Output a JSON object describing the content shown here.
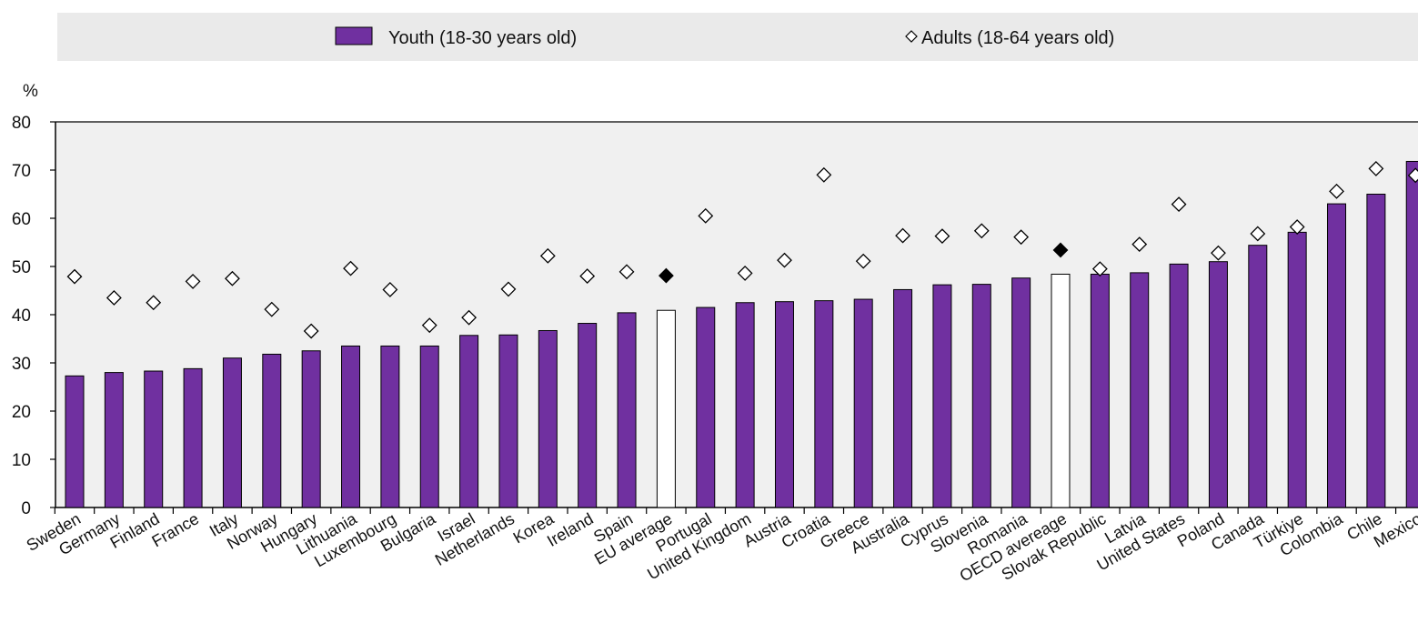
{
  "chart_data": {
    "type": "bar",
    "unit": "%",
    "ylim": [
      0,
      80
    ],
    "yticks": [
      0,
      10,
      20,
      30,
      40,
      50,
      60,
      70,
      80
    ],
    "grid": false,
    "legend_position": "top",
    "categories": [
      "Sweden",
      "Germany",
      "Finland",
      "France",
      "Italy",
      "Norway",
      "Hungary",
      "Lithuania",
      "Luxembourg",
      "Bulgaria",
      "Israel",
      "Netherlands",
      "Korea",
      "Ireland",
      "Spain",
      "EU average",
      "Portugal",
      "United Kingdom",
      "Austria",
      "Croatia",
      "Greece",
      "Australia",
      "Cyprus",
      "Slovenia",
      "Romania",
      "OECD avereage",
      "Slovak Republic",
      "Latvia",
      "United States",
      "Poland",
      "Canada",
      "Türkiye",
      "Colombia",
      "Chile",
      "Mexico"
    ],
    "highlight_categories": [
      "EU average",
      "OECD avereage"
    ],
    "series": [
      {
        "name": "Youth (18-30 years old)",
        "marker": "bar",
        "values": [
          27.3,
          28.0,
          28.3,
          28.8,
          31.0,
          31.8,
          32.5,
          33.5,
          33.5,
          33.5,
          35.7,
          35.8,
          36.7,
          38.2,
          40.4,
          40.9,
          41.5,
          42.5,
          42.7,
          42.9,
          43.2,
          45.2,
          46.2,
          46.3,
          47.6,
          48.4,
          48.4,
          48.7,
          50.5,
          51.0,
          54.4,
          57.1,
          63.0,
          65.0,
          71.8
        ]
      },
      {
        "name": "Adults (18-64 years old)",
        "marker": "diamond",
        "values": [
          47.9,
          43.5,
          42.5,
          46.9,
          47.5,
          41.1,
          36.6,
          49.6,
          45.2,
          37.8,
          39.4,
          45.3,
          52.2,
          48.0,
          48.9,
          48.1,
          60.5,
          48.6,
          51.3,
          69.0,
          51.1,
          56.4,
          56.3,
          57.4,
          56.1,
          53.4,
          49.5,
          54.6,
          62.9,
          52.8,
          56.8,
          58.2,
          65.6,
          70.3,
          68.9
        ]
      }
    ]
  },
  "colors": {
    "bar_fill": "#7030a0",
    "highlight_fill": "#ffffff",
    "stroke": "#000000",
    "plot_bg": "#f0f0f0",
    "legend_bg": "#eaeaea"
  }
}
